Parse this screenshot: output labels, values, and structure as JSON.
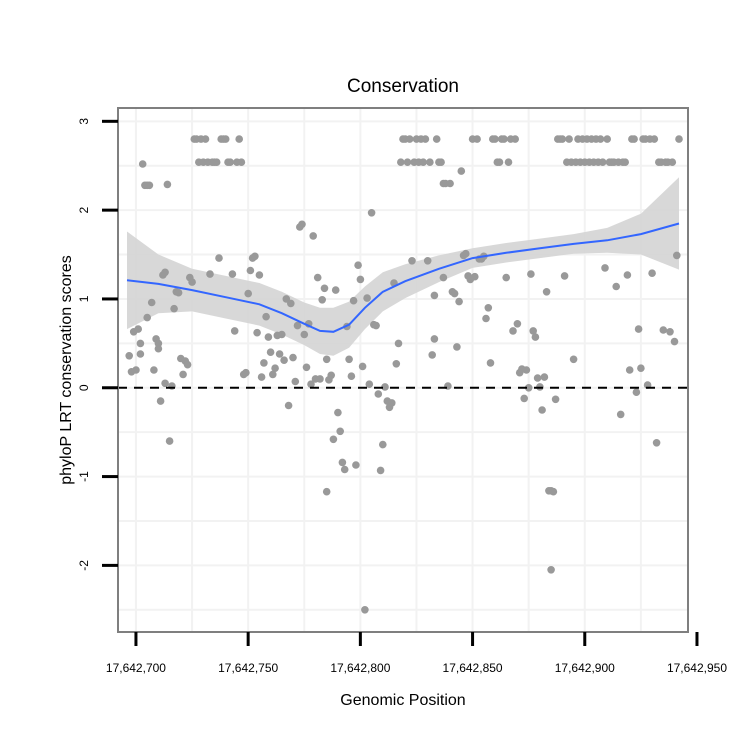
{
  "chart_data": {
    "type": "scatter",
    "title": "Conservation",
    "xlabel": "Genomic Position",
    "ylabel": "phyloP LRT conservation scores",
    "xlim": [
      17642692,
      17642946
    ],
    "ylim": [
      -2.75,
      3.15
    ],
    "xticks": [
      17642700,
      17642750,
      17642800,
      17642850,
      17642900,
      17642950
    ],
    "xtick_labels": [
      "17,642,700",
      "17,642,750",
      "17,642,800",
      "17,642,850",
      "17,642,900",
      "17,642,950"
    ],
    "yticks": [
      -2,
      -1,
      0,
      1,
      2,
      3
    ],
    "ytick_labels": [
      "-2",
      "-1",
      "0",
      "1",
      "2",
      "3"
    ],
    "grid": true,
    "reference_line": {
      "y": 0,
      "style": "dashed"
    },
    "colors": {
      "points": "#999999",
      "smooth": "#3366ff",
      "band": "#d4d4d4",
      "panel_border": "#7f7f7f",
      "grid": "#f2f2f2"
    },
    "smooth": {
      "x": [
        17642696,
        17642710,
        17642725,
        17642740,
        17642755,
        17642765,
        17642775,
        17642782,
        17642788,
        17642795,
        17642802,
        17642810,
        17642820,
        17642835,
        17642850,
        17642865,
        17642880,
        17642895,
        17642910,
        17642925,
        17642942
      ],
      "y": [
        1.21,
        1.17,
        1.1,
        1.02,
        0.94,
        0.84,
        0.72,
        0.64,
        0.63,
        0.71,
        0.9,
        1.08,
        1.2,
        1.34,
        1.46,
        1.52,
        1.57,
        1.62,
        1.66,
        1.73,
        1.85
      ],
      "lower": [
        0.66,
        0.84,
        0.86,
        0.78,
        0.7,
        0.6,
        0.48,
        0.38,
        0.36,
        0.45,
        0.66,
        0.86,
        1.01,
        1.19,
        1.35,
        1.41,
        1.46,
        1.51,
        1.52,
        1.5,
        1.33
      ],
      "upper": [
        1.76,
        1.5,
        1.34,
        1.26,
        1.18,
        1.08,
        0.96,
        0.9,
        0.9,
        0.97,
        1.14,
        1.3,
        1.39,
        1.49,
        1.57,
        1.63,
        1.68,
        1.73,
        1.8,
        1.96,
        2.37
      ]
    },
    "points": [
      {
        "x": 17642697,
        "y": 0.36
      },
      {
        "x": 17642698,
        "y": 0.18
      },
      {
        "x": 17642699,
        "y": 0.63
      },
      {
        "x": 17642700,
        "y": 0.2
      },
      {
        "x": 17642701,
        "y": 0.66
      },
      {
        "x": 17642702,
        "y": 0.38
      },
      {
        "x": 17642702,
        "y": 0.5
      },
      {
        "x": 17642703,
        "y": 2.52
      },
      {
        "x": 17642704,
        "y": 2.28
      },
      {
        "x": 17642705,
        "y": 2.28
      },
      {
        "x": 17642705,
        "y": 0.79
      },
      {
        "x": 17642706,
        "y": 2.28
      },
      {
        "x": 17642707,
        "y": 0.96
      },
      {
        "x": 17642708,
        "y": 0.2
      },
      {
        "x": 17642709,
        "y": 0.55
      },
      {
        "x": 17642710,
        "y": 0.44
      },
      {
        "x": 17642710,
        "y": 0.5
      },
      {
        "x": 17642711,
        "y": -0.15
      },
      {
        "x": 17642712,
        "y": 1.27
      },
      {
        "x": 17642713,
        "y": 0.05
      },
      {
        "x": 17642713,
        "y": 1.3
      },
      {
        "x": 17642714,
        "y": 2.29
      },
      {
        "x": 17642715,
        "y": -0.6
      },
      {
        "x": 17642716,
        "y": 0.02
      },
      {
        "x": 17642717,
        "y": 0.89
      },
      {
        "x": 17642718,
        "y": 1.08
      },
      {
        "x": 17642719,
        "y": 1.07
      },
      {
        "x": 17642720,
        "y": 0.33
      },
      {
        "x": 17642721,
        "y": 0.15
      },
      {
        "x": 17642722,
        "y": 0.3
      },
      {
        "x": 17642723,
        "y": 0.26
      },
      {
        "x": 17642724,
        "y": 1.24
      },
      {
        "x": 17642725,
        "y": 1.19
      },
      {
        "x": 17642726,
        "y": 2.8
      },
      {
        "x": 17642727,
        "y": 2.8
      },
      {
        "x": 17642728,
        "y": 2.54
      },
      {
        "x": 17642729,
        "y": 2.8
      },
      {
        "x": 17642730,
        "y": 2.54
      },
      {
        "x": 17642731,
        "y": 2.8
      },
      {
        "x": 17642732,
        "y": 2.54
      },
      {
        "x": 17642733,
        "y": 1.28
      },
      {
        "x": 17642734,
        "y": 2.54
      },
      {
        "x": 17642735,
        "y": 2.54
      },
      {
        "x": 17642736,
        "y": 2.54
      },
      {
        "x": 17642737,
        "y": 1.46
      },
      {
        "x": 17642738,
        "y": 2.8
      },
      {
        "x": 17642739,
        "y": 2.8
      },
      {
        "x": 17642740,
        "y": 2.8
      },
      {
        "x": 17642741,
        "y": 2.54
      },
      {
        "x": 17642742,
        "y": 2.54
      },
      {
        "x": 17642743,
        "y": 1.28
      },
      {
        "x": 17642744,
        "y": 0.64
      },
      {
        "x": 17642745,
        "y": 2.54
      },
      {
        "x": 17642746,
        "y": 2.8
      },
      {
        "x": 17642747,
        "y": 2.54
      },
      {
        "x": 17642748,
        "y": 0.15
      },
      {
        "x": 17642749,
        "y": 0.17
      },
      {
        "x": 17642750,
        "y": 1.06
      },
      {
        "x": 17642751,
        "y": 1.32
      },
      {
        "x": 17642752,
        "y": 1.46
      },
      {
        "x": 17642753,
        "y": 1.48
      },
      {
        "x": 17642754,
        "y": 0.62
      },
      {
        "x": 17642755,
        "y": 1.27
      },
      {
        "x": 17642756,
        "y": 0.12
      },
      {
        "x": 17642757,
        "y": 0.28
      },
      {
        "x": 17642758,
        "y": 0.8
      },
      {
        "x": 17642759,
        "y": 0.57
      },
      {
        "x": 17642760,
        "y": 0.4
      },
      {
        "x": 17642761,
        "y": 0.15
      },
      {
        "x": 17642762,
        "y": 0.22
      },
      {
        "x": 17642763,
        "y": 0.59
      },
      {
        "x": 17642764,
        "y": 0.38
      },
      {
        "x": 17642765,
        "y": 0.6
      },
      {
        "x": 17642766,
        "y": 0.31
      },
      {
        "x": 17642767,
        "y": 1.0
      },
      {
        "x": 17642768,
        "y": -0.2
      },
      {
        "x": 17642769,
        "y": 0.95
      },
      {
        "x": 17642770,
        "y": 0.34
      },
      {
        "x": 17642771,
        "y": 0.07
      },
      {
        "x": 17642772,
        "y": 0.7
      },
      {
        "x": 17642773,
        "y": 1.81
      },
      {
        "x": 17642774,
        "y": 1.84
      },
      {
        "x": 17642775,
        "y": 0.6
      },
      {
        "x": 17642776,
        "y": 0.23
      },
      {
        "x": 17642777,
        "y": 0.72
      },
      {
        "x": 17642778,
        "y": 0.04
      },
      {
        "x": 17642779,
        "y": 1.71
      },
      {
        "x": 17642780,
        "y": 0.1
      },
      {
        "x": 17642781,
        "y": 1.24
      },
      {
        "x": 17642782,
        "y": 0.1
      },
      {
        "x": 17642783,
        "y": 0.99
      },
      {
        "x": 17642784,
        "y": 1.12
      },
      {
        "x": 17642785,
        "y": 0.32
      },
      {
        "x": 17642785,
        "y": -1.17
      },
      {
        "x": 17642786,
        "y": 0.09
      },
      {
        "x": 17642787,
        "y": 0.14
      },
      {
        "x": 17642788,
        "y": -0.58
      },
      {
        "x": 17642789,
        "y": 1.1
      },
      {
        "x": 17642790,
        "y": -0.28
      },
      {
        "x": 17642791,
        "y": -0.49
      },
      {
        "x": 17642792,
        "y": -0.84
      },
      {
        "x": 17642793,
        "y": -0.92
      },
      {
        "x": 17642794,
        "y": 0.69
      },
      {
        "x": 17642795,
        "y": 0.32
      },
      {
        "x": 17642796,
        "y": 0.13
      },
      {
        "x": 17642797,
        "y": 0.98
      },
      {
        "x": 17642798,
        "y": -0.87
      },
      {
        "x": 17642799,
        "y": 1.38
      },
      {
        "x": 17642800,
        "y": 1.22
      },
      {
        "x": 17642801,
        "y": 0.24
      },
      {
        "x": 17642802,
        "y": -2.5
      },
      {
        "x": 17642803,
        "y": 1.01
      },
      {
        "x": 17642804,
        "y": 0.04
      },
      {
        "x": 17642805,
        "y": 1.97
      },
      {
        "x": 17642806,
        "y": 0.71
      },
      {
        "x": 17642807,
        "y": 0.7
      },
      {
        "x": 17642808,
        "y": -0.07
      },
      {
        "x": 17642809,
        "y": -0.93
      },
      {
        "x": 17642810,
        "y": -0.64
      },
      {
        "x": 17642811,
        "y": 0.01
      },
      {
        "x": 17642812,
        "y": -0.15
      },
      {
        "x": 17642813,
        "y": -0.22
      },
      {
        "x": 17642814,
        "y": -0.17
      },
      {
        "x": 17642815,
        "y": 1.18
      },
      {
        "x": 17642816,
        "y": 0.27
      },
      {
        "x": 17642817,
        "y": 0.5
      },
      {
        "x": 17642818,
        "y": 2.54
      },
      {
        "x": 17642819,
        "y": 2.8
      },
      {
        "x": 17642820,
        "y": 2.8
      },
      {
        "x": 17642821,
        "y": 2.54
      },
      {
        "x": 17642822,
        "y": 2.8
      },
      {
        "x": 17642823,
        "y": 1.43
      },
      {
        "x": 17642824,
        "y": 2.54
      },
      {
        "x": 17642825,
        "y": 2.8
      },
      {
        "x": 17642826,
        "y": 2.54
      },
      {
        "x": 17642827,
        "y": 2.8
      },
      {
        "x": 17642828,
        "y": 2.54
      },
      {
        "x": 17642829,
        "y": 2.8
      },
      {
        "x": 17642830,
        "y": 1.43
      },
      {
        "x": 17642831,
        "y": 2.54
      },
      {
        "x": 17642832,
        "y": 0.37
      },
      {
        "x": 17642833,
        "y": 1.04
      },
      {
        "x": 17642833,
        "y": 0.55
      },
      {
        "x": 17642834,
        "y": 2.8
      },
      {
        "x": 17642835,
        "y": 2.54
      },
      {
        "x": 17642836,
        "y": 2.54
      },
      {
        "x": 17642837,
        "y": 2.3
      },
      {
        "x": 17642837,
        "y": 1.24
      },
      {
        "x": 17642838,
        "y": 2.3
      },
      {
        "x": 17642839,
        "y": 0.02
      },
      {
        "x": 17642840,
        "y": 2.3
      },
      {
        "x": 17642841,
        "y": 1.08
      },
      {
        "x": 17642842,
        "y": 1.06
      },
      {
        "x": 17642843,
        "y": 0.46
      },
      {
        "x": 17642844,
        "y": 0.97
      },
      {
        "x": 17642845,
        "y": 2.44
      },
      {
        "x": 17642846,
        "y": 1.49
      },
      {
        "x": 17642847,
        "y": 1.51
      },
      {
        "x": 17642848,
        "y": 1.26
      },
      {
        "x": 17642849,
        "y": 1.22
      },
      {
        "x": 17642850,
        "y": 2.8
      },
      {
        "x": 17642851,
        "y": 1.25
      },
      {
        "x": 17642852,
        "y": 2.8
      },
      {
        "x": 17642853,
        "y": 1.45
      },
      {
        "x": 17642854,
        "y": 1.45
      },
      {
        "x": 17642855,
        "y": 1.48
      },
      {
        "x": 17642856,
        "y": 0.78
      },
      {
        "x": 17642857,
        "y": 0.9
      },
      {
        "x": 17642858,
        "y": 0.28
      },
      {
        "x": 17642859,
        "y": 2.8
      },
      {
        "x": 17642860,
        "y": 2.8
      },
      {
        "x": 17642861,
        "y": 2.54
      },
      {
        "x": 17642862,
        "y": 2.54
      },
      {
        "x": 17642863,
        "y": 2.8
      },
      {
        "x": 17642864,
        "y": 2.8
      },
      {
        "x": 17642865,
        "y": 1.24
      },
      {
        "x": 17642866,
        "y": 2.54
      },
      {
        "x": 17642867,
        "y": 2.8
      },
      {
        "x": 17642868,
        "y": 0.64
      },
      {
        "x": 17642869,
        "y": 2.8
      },
      {
        "x": 17642870,
        "y": 0.72
      },
      {
        "x": 17642871,
        "y": 0.17
      },
      {
        "x": 17642872,
        "y": 0.21
      },
      {
        "x": 17642873,
        "y": -0.12
      },
      {
        "x": 17642874,
        "y": 0.2
      },
      {
        "x": 17642875,
        "y": 0.0
      },
      {
        "x": 17642876,
        "y": 1.28
      },
      {
        "x": 17642877,
        "y": 0.64
      },
      {
        "x": 17642878,
        "y": 0.57
      },
      {
        "x": 17642879,
        "y": 0.11
      },
      {
        "x": 17642880,
        "y": 0.01
      },
      {
        "x": 17642881,
        "y": -0.25
      },
      {
        "x": 17642882,
        "y": 0.12
      },
      {
        "x": 17642883,
        "y": 1.08
      },
      {
        "x": 17642884,
        "y": -1.16
      },
      {
        "x": 17642885,
        "y": -1.16
      },
      {
        "x": 17642885,
        "y": -2.05
      },
      {
        "x": 17642886,
        "y": -1.17
      },
      {
        "x": 17642887,
        "y": -0.13
      },
      {
        "x": 17642888,
        "y": 2.8
      },
      {
        "x": 17642889,
        "y": 2.8
      },
      {
        "x": 17642890,
        "y": 2.8
      },
      {
        "x": 17642891,
        "y": 1.26
      },
      {
        "x": 17642892,
        "y": 2.54
      },
      {
        "x": 17642893,
        "y": 2.8
      },
      {
        "x": 17642894,
        "y": 2.54
      },
      {
        "x": 17642895,
        "y": 0.32
      },
      {
        "x": 17642896,
        "y": 2.54
      },
      {
        "x": 17642897,
        "y": 2.8
      },
      {
        "x": 17642898,
        "y": 2.54
      },
      {
        "x": 17642899,
        "y": 2.8
      },
      {
        "x": 17642900,
        "y": 2.54
      },
      {
        "x": 17642901,
        "y": 2.8
      },
      {
        "x": 17642902,
        "y": 2.54
      },
      {
        "x": 17642903,
        "y": 2.8
      },
      {
        "x": 17642904,
        "y": 2.54
      },
      {
        "x": 17642905,
        "y": 2.8
      },
      {
        "x": 17642906,
        "y": 2.54
      },
      {
        "x": 17642907,
        "y": 2.8
      },
      {
        "x": 17642908,
        "y": 2.54
      },
      {
        "x": 17642909,
        "y": 1.35
      },
      {
        "x": 17642910,
        "y": 2.8
      },
      {
        "x": 17642911,
        "y": 2.54
      },
      {
        "x": 17642912,
        "y": 2.54
      },
      {
        "x": 17642913,
        "y": 2.54
      },
      {
        "x": 17642914,
        "y": 1.14
      },
      {
        "x": 17642915,
        "y": 2.54
      },
      {
        "x": 17642916,
        "y": -0.3
      },
      {
        "x": 17642917,
        "y": 2.54
      },
      {
        "x": 17642918,
        "y": 2.54
      },
      {
        "x": 17642919,
        "y": 1.27
      },
      {
        "x": 17642920,
        "y": 0.2
      },
      {
        "x": 17642921,
        "y": 2.8
      },
      {
        "x": 17642922,
        "y": 2.8
      },
      {
        "x": 17642923,
        "y": -0.05
      },
      {
        "x": 17642924,
        "y": 0.66
      },
      {
        "x": 17642925,
        "y": 0.22
      },
      {
        "x": 17642926,
        "y": 2.8
      },
      {
        "x": 17642927,
        "y": 2.8
      },
      {
        "x": 17642928,
        "y": 0.03
      },
      {
        "x": 17642929,
        "y": 2.8
      },
      {
        "x": 17642930,
        "y": 1.29
      },
      {
        "x": 17642931,
        "y": 2.8
      },
      {
        "x": 17642932,
        "y": -0.62
      },
      {
        "x": 17642933,
        "y": 2.54
      },
      {
        "x": 17642934,
        "y": 2.54
      },
      {
        "x": 17642935,
        "y": 0.65
      },
      {
        "x": 17642936,
        "y": 2.54
      },
      {
        "x": 17642937,
        "y": 2.54
      },
      {
        "x": 17642938,
        "y": 0.63
      },
      {
        "x": 17642939,
        "y": 2.54
      },
      {
        "x": 17642940,
        "y": 0.52
      },
      {
        "x": 17642941,
        "y": 1.49
      },
      {
        "x": 17642942,
        "y": 2.8
      }
    ]
  }
}
